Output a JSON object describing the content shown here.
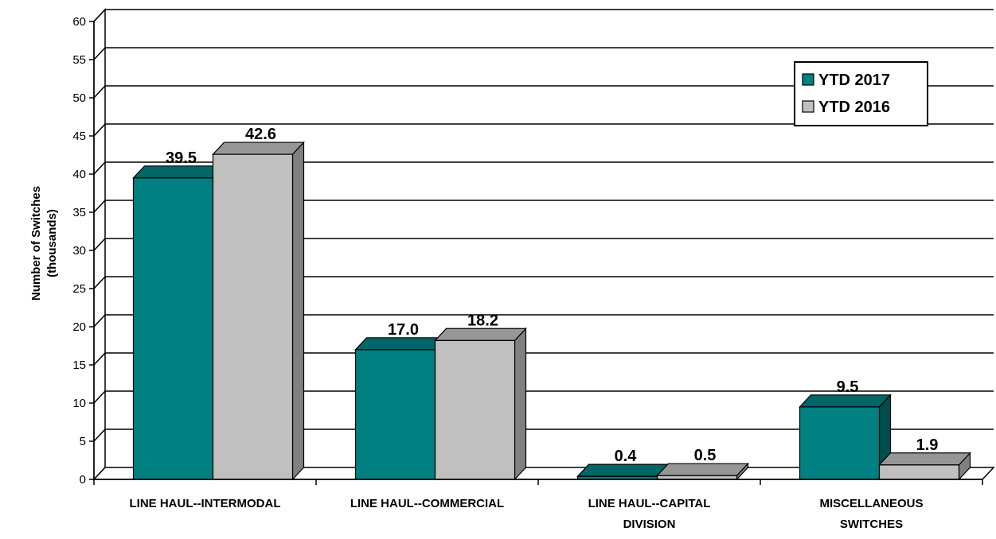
{
  "chart_data": {
    "type": "bar",
    "title": "",
    "xlabel": "",
    "ylabel": [
      "Number of Switches",
      "(thousands)"
    ],
    "ylim": [
      0,
      60
    ],
    "yticks": [
      0,
      5,
      10,
      15,
      20,
      25,
      30,
      35,
      40,
      45,
      50,
      55,
      60
    ],
    "grid": true,
    "legend_position": "top-right",
    "categories": [
      [
        "LINE HAUL--INTERMODAL"
      ],
      [
        "LINE HAUL--COMMERCIAL"
      ],
      [
        "LINE HAUL--CAPITAL",
        "DIVISION"
      ],
      [
        "MISCELLANEOUS",
        "SWITCHES"
      ]
    ],
    "series": [
      {
        "name": "YTD 2017",
        "values": [
          39.5,
          17.0,
          0.4,
          9.5
        ],
        "labels": [
          "39.5",
          "17.0",
          "0.4",
          "9.5"
        ],
        "color": "#008080",
        "top_color": "#006666",
        "side_color": "#004d4d"
      },
      {
        "name": "YTD 2016",
        "values": [
          42.6,
          18.2,
          0.5,
          1.9
        ],
        "labels": [
          "42.6",
          "18.2",
          "0.5",
          "1.9"
        ],
        "color": "#c0c0c0",
        "top_color": "#969696",
        "side_color": "#808080"
      }
    ]
  }
}
